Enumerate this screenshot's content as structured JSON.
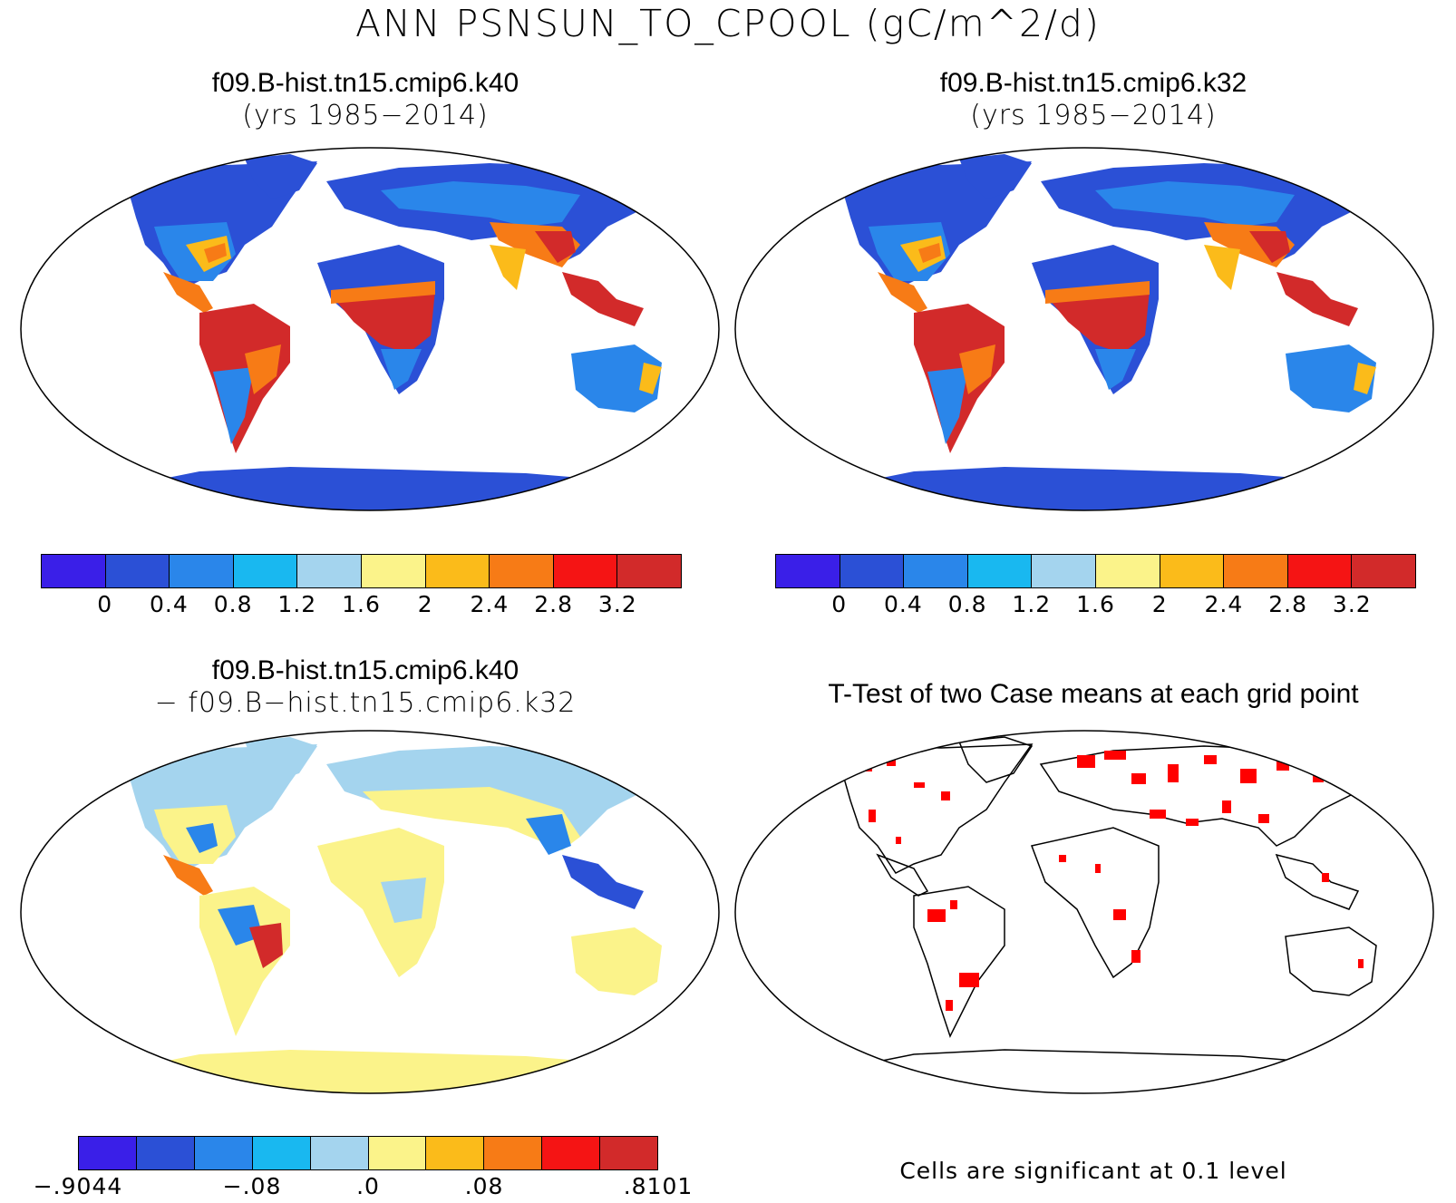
{
  "title": "ANN PSNSUN_TO_CPOOL (gC/m^2/d)",
  "panels": [
    {
      "case": "f09.B-hist.tn15.cmip6.k40",
      "years": "(yrs 1985−2014)"
    },
    {
      "case": "f09.B-hist.tn15.cmip6.k32",
      "years": "(yrs 1985−2014)"
    },
    {
      "case": "f09.B-hist.tn15.cmip6.k40",
      "line2": "− f09.B−hist.tn15.cmip6.k32"
    },
    {
      "title": "T-Test of two Case means at each grid point"
    }
  ],
  "colorbar_main": {
    "colors": [
      "#3a1fe8",
      "#2b50d6",
      "#2a86ea",
      "#19b8f0",
      "#a4d4ee",
      "#fbf38a",
      "#fbbb1a",
      "#f77b16",
      "#f51414",
      "#d22a2a"
    ],
    "ticks": [
      "0",
      "0.4",
      "0.8",
      "1.2",
      "1.6",
      "2",
      "2.4",
      "2.8",
      "3.2"
    ]
  },
  "colorbar_diff": {
    "colors": [
      "#3a1fe8",
      "#2b50d6",
      "#2a86ea",
      "#19b8f0",
      "#a4d4ee",
      "#fbf38a",
      "#fbbb1a",
      "#f77b16",
      "#f51414",
      "#d22a2a"
    ],
    "ticks": [
      "−.9044",
      "−.08",
      ".0",
      ".08",
      ".8101"
    ]
  },
  "significance_note": "Cells are significant at 0.1 level",
  "map_colors": {
    "ocean": "#ffffff",
    "low": "#2b50d6",
    "midlow": "#2a86ea",
    "mid": "#a4d4ee",
    "yellow": "#fbf38a",
    "orange": "#f77b16",
    "high": "#d22a2a",
    "sig": "#ff0000"
  }
}
